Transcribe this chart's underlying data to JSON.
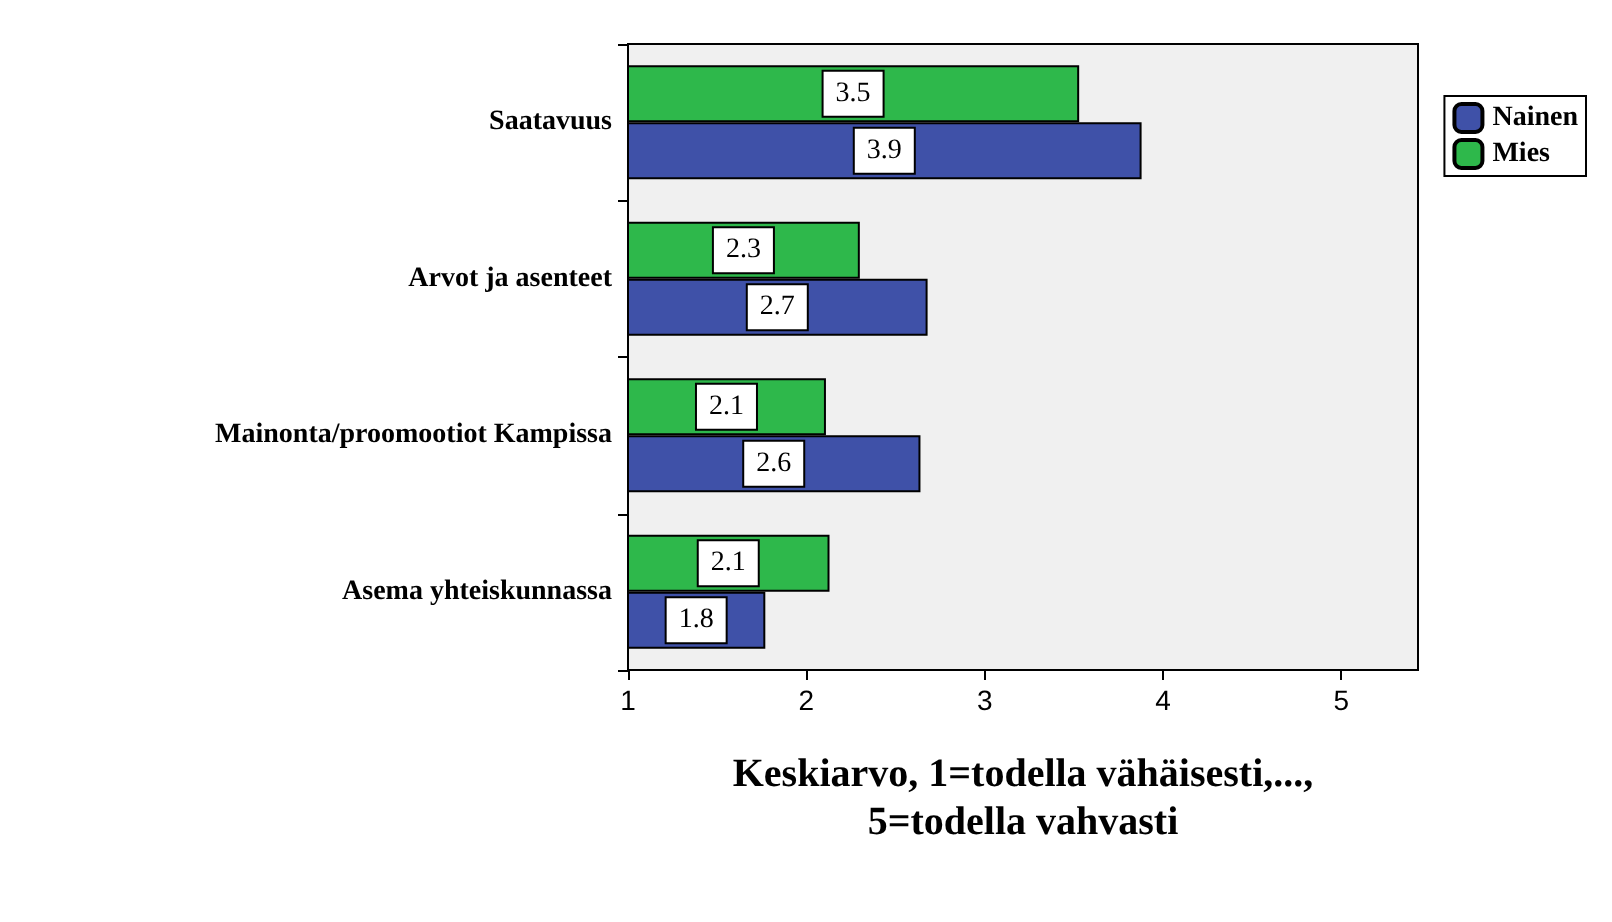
{
  "chart_data": {
    "type": "bar",
    "orientation": "horizontal",
    "xlabel": "Keskiarvo, 1=todella vähäisesti,...,\n5=todella vahvasti",
    "categories": [
      "Saatavuus",
      "Arvot ja asenteet",
      "Mainonta/proomootiot Kampissa",
      "Asema yhteiskunnassa"
    ],
    "series": [
      {
        "name": "Nainen",
        "color": "#3f51a8",
        "values": [
          3.88,
          2.68,
          2.64,
          1.77
        ],
        "value_labels": [
          "3.9",
          "2.7",
          "2.6",
          "1.8"
        ]
      },
      {
        "name": "Mies",
        "color": "#2eb84b",
        "values": [
          3.53,
          2.3,
          2.11,
          2.13
        ],
        "value_labels": [
          "3.5",
          "2.3",
          "2.1",
          "2.1"
        ]
      }
    ],
    "xlim": [
      1,
      5.43
    ],
    "xticks": [
      1,
      2,
      3,
      4,
      5
    ],
    "grid": false,
    "legend": "right"
  }
}
